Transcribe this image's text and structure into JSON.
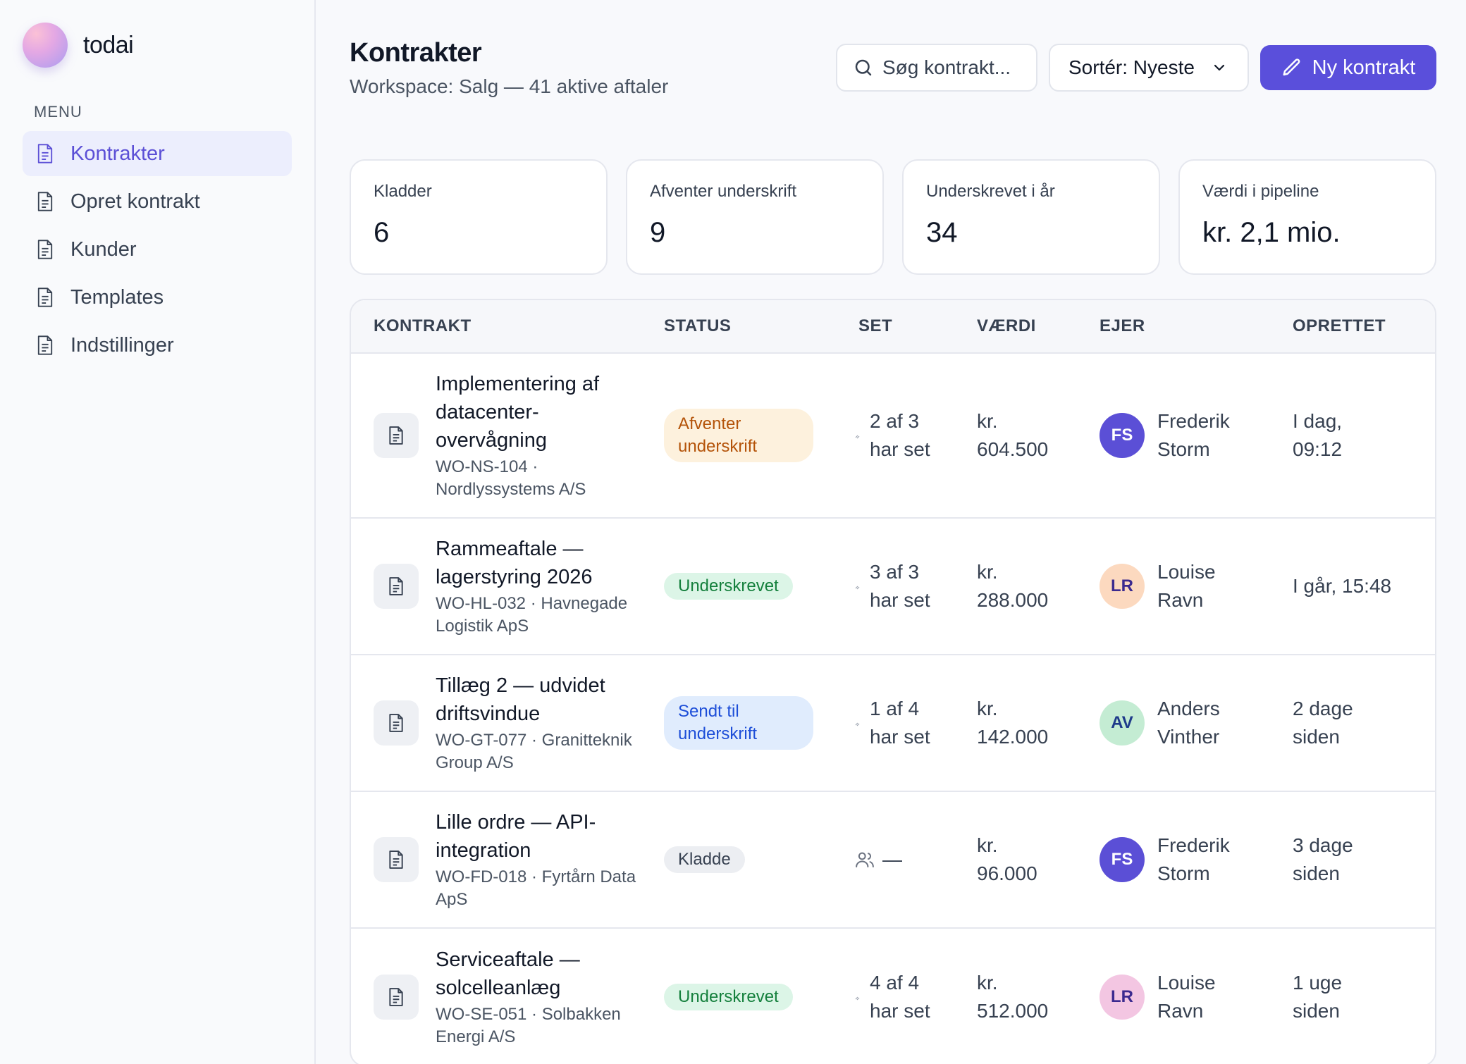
{
  "app": {
    "name": "todai"
  },
  "sidebar": {
    "menu_label": "MENU",
    "items": [
      {
        "label": "Kontrakter",
        "icon": "document-icon",
        "active": true
      },
      {
        "label": "Opret kontrakt",
        "icon": "document-icon",
        "active": false
      },
      {
        "label": "Kunder",
        "icon": "document-icon",
        "active": false
      },
      {
        "label": "Templates",
        "icon": "document-icon",
        "active": false
      },
      {
        "label": "Indstillinger",
        "icon": "document-icon",
        "active": false
      }
    ]
  },
  "header": {
    "title": "Kontrakter",
    "subtitle": "Workspace: Salg — 41 aktive aftaler",
    "search_placeholder": "Søg kontrakt...",
    "sort_label": "Sortér: Nyeste",
    "new_button_label": "Ny kontrakt"
  },
  "stats": [
    {
      "label": "Kladder",
      "value": "6"
    },
    {
      "label": "Afventer underskrift",
      "value": "9"
    },
    {
      "label": "Underskrevet i år",
      "value": "34"
    },
    {
      "label": "Værdi i pipeline",
      "value": "kr. 2,1 mio."
    }
  ],
  "table": {
    "columns": [
      "KONTRAKT",
      "STATUS",
      "SET",
      "VÆRDI",
      "EJER",
      "OPRETTET"
    ],
    "rows": [
      {
        "title": "Implementering af datacenter-overvågning",
        "subtitle": "WO-NS-104 · Nordlyssystems A/S",
        "status": "Afventer underskrift",
        "status_kind": "pending",
        "seen": "2 af 3 har set",
        "value": "kr. 604.500",
        "owner_initials": "FS",
        "owner_name": "Frederik Storm",
        "created": "I dag, 09:12"
      },
      {
        "title": "Rammeaftale — lagerstyring 2026",
        "subtitle": "WO-HL-032 · Havnegade Logistik ApS",
        "status": "Underskrevet",
        "status_kind": "signed",
        "seen": "3 af 3 har set",
        "value": "kr. 288.000",
        "owner_initials": "LR",
        "owner_name": "Louise Ravn",
        "created": "I går, 15:48"
      },
      {
        "title": "Tillæg 2 — udvidet driftsvindue",
        "subtitle": "WO-GT-077 · Granitteknik Group A/S",
        "status": "Sendt til underskrift",
        "status_kind": "sent",
        "seen": "1 af 4 har set",
        "value": "kr. 142.000",
        "owner_initials": "AV",
        "owner_name": "Anders Vinther",
        "created": "2 dage siden"
      },
      {
        "title": "Lille ordre — API-integration",
        "subtitle": "WO-FD-018 · Fyrtårn Data ApS",
        "status": "Kladde",
        "status_kind": "draft",
        "seen": "—",
        "value": "kr. 96.000",
        "owner_initials": "FS",
        "owner_name": "Frederik Storm",
        "created": "3 dage siden"
      },
      {
        "title": "Serviceaftale — solcelleanlæg",
        "subtitle": "WO-SE-051 · Solbakken Energi A/S",
        "status": "Underskrevet",
        "status_kind": "signed",
        "seen": "4 af 4 har set",
        "value": "kr. 512.000",
        "owner_initials": "LR",
        "owner_name": "Louise Ravn",
        "created": "1 uge siden"
      }
    ]
  },
  "colors": {
    "accent": "#5a4fdb",
    "avatar_fs_bg": "#5b4fd6",
    "avatar_fs_fg": "#ffffff",
    "avatar_lr_bg": "#fcd9bf",
    "avatar_lr_fg": "#3b2a8f",
    "avatar_av_bg": "#c4ecd3",
    "avatar_av_fg": "#1e3a8a",
    "avatar_lr2_bg": "#f3c6e2",
    "avatar_lr2_fg": "#3b2a8f"
  }
}
